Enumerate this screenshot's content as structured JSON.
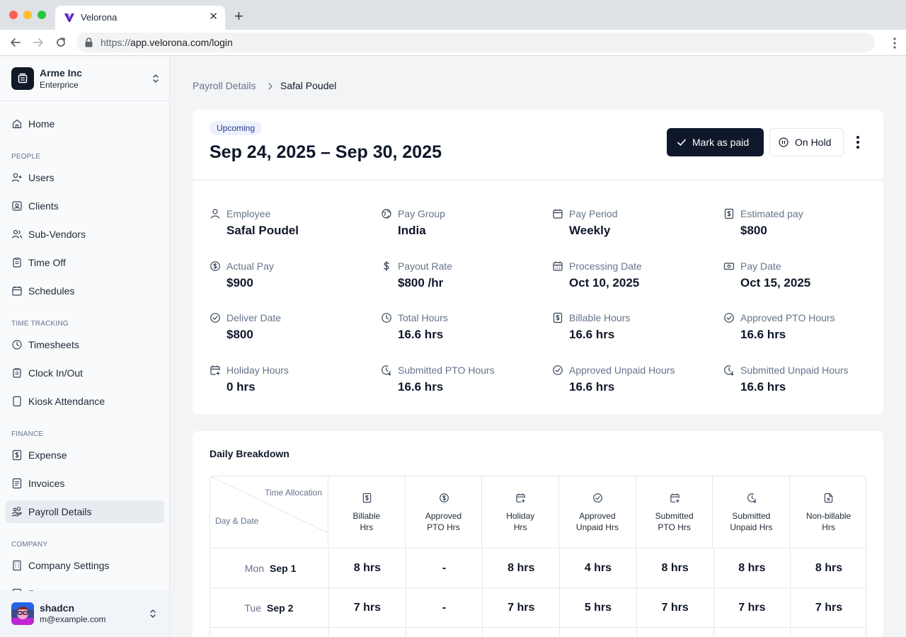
{
  "browser": {
    "tab_title": "Velorona",
    "url_scheme": "https://",
    "url_rest": "app.velorona.com/login",
    "brand_color": "#5b21b6"
  },
  "sidebar": {
    "org_name": "Arme Inc",
    "org_plan": "Enterprice",
    "home": "Home",
    "sections": {
      "people": "PEOPLE",
      "time_tracking": "TIME TRACKING",
      "finance": "FINANCE",
      "company": "COMPANY"
    },
    "items": {
      "users": "Users",
      "clients": "Clients",
      "subvendors": "Sub-Vendors",
      "timeoff": "Time Off",
      "schedules": "Schedules",
      "timesheets": "Timesheets",
      "clock": "Clock In/Out",
      "kiosk": "Kiosk Attendance",
      "expense": "Expense",
      "invoices": "Invoices",
      "payroll": "Payroll Details",
      "company_settings": "Company Settings",
      "reports_partial": "Reports"
    },
    "user": {
      "name": "shadcn",
      "email": "m@example.com"
    }
  },
  "breadcrumb": {
    "parent": "Payroll Details",
    "current": "Safal Poudel"
  },
  "summary": {
    "status": "Upcoming",
    "period": "Sep 24, 2025 – Sep 30, 2025",
    "mark_paid": "Mark as paid",
    "on_hold": "On Hold",
    "details": {
      "employee": {
        "label": "Employee",
        "value": "Safal Poudel"
      },
      "pay_group": {
        "label": "Pay Group",
        "value": "India"
      },
      "pay_period": {
        "label": "Pay Period",
        "value": "Weekly"
      },
      "estimated_pay": {
        "label": "Estimated pay",
        "value": "$800"
      },
      "actual_pay": {
        "label": "Actual Pay",
        "value": "$900"
      },
      "payout_rate": {
        "label": "Payout Rate",
        "value": "$800 /hr"
      },
      "processing_date": {
        "label": "Processing Date",
        "value": "Oct 10, 2025"
      },
      "pay_date": {
        "label": "Pay Date",
        "value": "Oct 15, 2025"
      },
      "deliver_date": {
        "label": "Deliver Date",
        "value": "$800"
      },
      "total_hours": {
        "label": "Total Hours",
        "value": "16.6 hrs"
      },
      "billable_hours": {
        "label": "Billable Hours",
        "value": "16.6 hrs"
      },
      "approved_pto": {
        "label": "Approved PTO Hours",
        "value": "16.6 hrs"
      },
      "holiday_hours": {
        "label": "Holiday Hours",
        "value": "0 hrs"
      },
      "submitted_pto": {
        "label": "Submitted PTO Hours",
        "value": "16.6 hrs"
      },
      "approved_unpaid": {
        "label": "Approved Unpaid Hours",
        "value": "16.6 hrs"
      },
      "submitted_unpaid": {
        "label": "Submitted Unpaid Hours",
        "value": "16.6 hrs"
      }
    }
  },
  "daily": {
    "title": "Daily Breakdown",
    "corner_top": "Time Allocation",
    "corner_bottom": "Day & Date",
    "columns": [
      {
        "line1": "Billable",
        "line2": "Hrs",
        "icon": "dollar-doc-icon"
      },
      {
        "line1": "Approved",
        "line2": "PTO Hrs",
        "icon": "dollar-circle-icon"
      },
      {
        "line1": "Holiday",
        "line2": "Hrs",
        "icon": "calendar-plus-icon"
      },
      {
        "line1": "Approved",
        "line2": "Unpaid Hrs",
        "icon": "check-circle-icon"
      },
      {
        "line1": "Submitted",
        "line2": "PTO Hrs",
        "icon": "calendar-plus-icon"
      },
      {
        "line1": "Submitted",
        "line2": "Unpaid Hrs",
        "icon": "clock-circle-icon"
      },
      {
        "line1": "Non-billable",
        "line2": "Hrs",
        "icon": "file-x-icon"
      }
    ],
    "rows": [
      {
        "day": "Mon",
        "date": "Sep 1",
        "cells": [
          "8 hrs",
          "-",
          "8 hrs",
          "4 hrs",
          "8 hrs",
          "8 hrs",
          "8 hrs"
        ]
      },
      {
        "day": "Tue",
        "date": "Sep 2",
        "cells": [
          "7 hrs",
          "-",
          "7 hrs",
          "5 hrs",
          "7 hrs",
          "7 hrs",
          "7 hrs"
        ]
      }
    ]
  }
}
